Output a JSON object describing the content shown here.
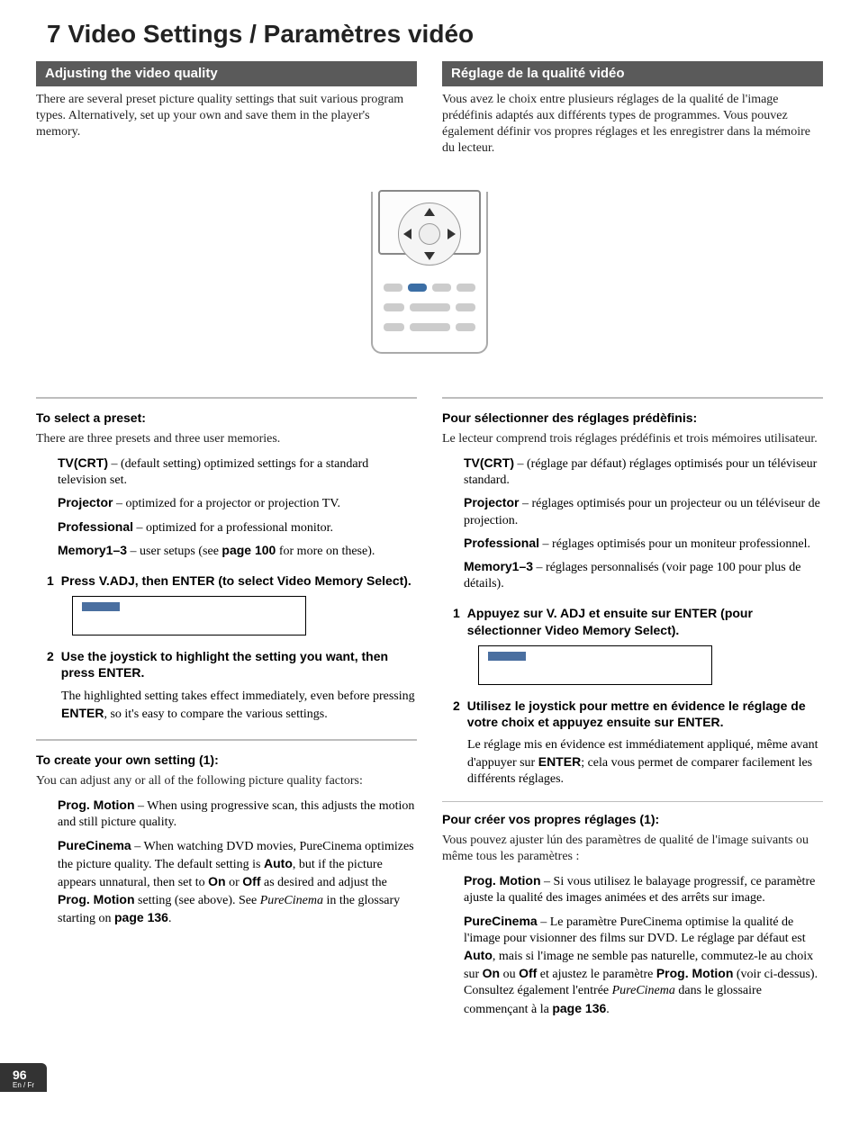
{
  "chapter": "7 Video Settings / Paramètres vidéo",
  "left": {
    "head": "Adjusting the video quality",
    "intro": "There are several preset picture quality settings that suit various program types. Alternatively, set up your own and save them in the player's memory.",
    "preset_heading": "To select a preset:",
    "preset_lead": "There are three presets and three user memories.",
    "defs": [
      {
        "term": "TV(CRT)",
        "text": " – (default setting) optimized settings for a standard television set."
      },
      {
        "term": "Projector",
        "text": " – optimized for a projector or projection TV."
      },
      {
        "term": "Professional",
        "text": " – optimized for a professional monitor."
      },
      {
        "term": "Memory1–3",
        "text_pre": " – user setups (see ",
        "bold": "page 100",
        "text_post": " for more on these)."
      }
    ],
    "step1": "Press V.ADJ, then ENTER (to select Video Memory Select).",
    "step2": "Use the joystick to highlight the setting you want, then press ENTER.",
    "step2_body_pre": "The highlighted setting takes effect immediately, even before pressing ",
    "step2_body_bold": "ENTER",
    "step2_body_post": ", so it's easy to compare the various settings.",
    "create_heading": "To create your own setting (1):",
    "create_lead": "You can adjust any or all of the following picture quality factors:",
    "create_defs": [
      {
        "term": "Prog. Motion",
        "text": " – When using progressive scan, this adjusts the motion and still picture quality."
      }
    ],
    "pc_term": "PureCinema",
    "pc_t1": " – When watching DVD movies, PureCinema optimizes the picture quality. The default setting is ",
    "pc_auto": "Auto",
    "pc_t2": ", but if the picture appears unnatural, then set to ",
    "pc_on": "On",
    "pc_or": " or ",
    "pc_off": "Off",
    "pc_t3": " as desired and adjust the ",
    "pc_prog": "Prog. Motion",
    "pc_t4": " setting (see above). See ",
    "pc_ital": "PureCinema",
    "pc_t5": " in the glossary starting on ",
    "pc_page": "page 136",
    "pc_t6": "."
  },
  "right": {
    "head": "Réglage de la qualité vidéo",
    "intro": "Vous avez le choix entre plusieurs réglages de la qualité de l'image prédéfinis adaptés aux différents types de programmes.  Vous pouvez également définir vos propres réglages et les enregistrer dans la mémoire du lecteur.",
    "preset_heading": "Pour sélectionner des réglages prédèfinis:",
    "preset_lead": "Le lecteur comprend trois réglages prédéfinis et trois mémoires utilisateur.",
    "defs": [
      {
        "term": "TV(CRT)",
        "text": " – (réglage par défaut) réglages optimisés pour un téléviseur standard."
      },
      {
        "term": "Projector",
        "text": " – réglages optimisés pour un projecteur ou un téléviseur de projection."
      },
      {
        "term": "Professional",
        "text": " – réglages optimisés pour un moniteur professionnel."
      },
      {
        "term": "Memory1–3",
        "text": "  – réglages personnalisés (voir page 100 pour plus de détails)."
      }
    ],
    "step1": "Appuyez sur V. ADJ et ensuite sur ENTER (pour sélectionner Video Memory Select).",
    "step2": "Utilisez le joystick pour mettre en évidence le réglage de votre choix et appuyez ensuite sur ENTER.",
    "step2_body_pre": "Le réglage mis en évidence est immédiatement appliqué, même avant d'appuyer sur ",
    "step2_body_bold": "ENTER",
    "step2_body_post": "; cela vous permet de comparer facilement les différents réglages.",
    "create_heading": "Pour créer vos propres réglages (1):",
    "create_lead": "Vous pouvez ajuster lún des paramètres de qualité de l'image suivants ou même tous les paramètres :",
    "create_defs": [
      {
        "term": "Prog. Motion",
        "text": " – Si vous utilisez le balayage progressif, ce paramètre ajuste la qualité des images animées et des arrêts sur image."
      }
    ],
    "pc_term": "PureCinema",
    "pc_t1": " – Le paramètre PureCinema optimise la qualité de l'image pour visionner des films sur DVD.  Le réglage par défaut est ",
    "pc_auto": "Auto",
    "pc_t2": ", mais si l'image ne semble pas naturelle, commutez-le au choix sur ",
    "pc_on": "On",
    "pc_or": " ou ",
    "pc_off": "Off",
    "pc_t3": " et ajustez le paramètre ",
    "pc_prog": "Prog. Motion",
    "pc_t4": " (voir ci-dessus).  Consultez également l'entrée ",
    "pc_ital": "PureCinema",
    "pc_t5": " dans le glossaire commençant à la ",
    "pc_page": "page 136",
    "pc_t6": "."
  },
  "footer": {
    "page": "96",
    "langs": "En / Fr"
  },
  "nums": {
    "one": "1",
    "two": "2"
  }
}
